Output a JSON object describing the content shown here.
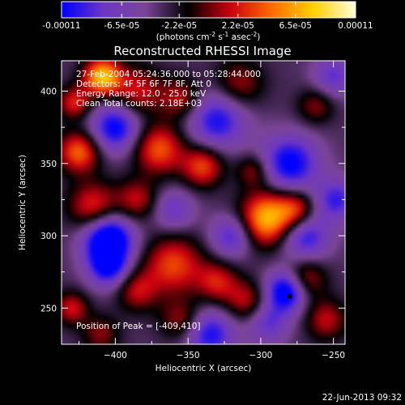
{
  "colorbar": {
    "tick_labels": [
      "-0.00011",
      "-6.5e-05",
      "-2.2e-05",
      "2.2e-05",
      "6.5e-05",
      "0.00011"
    ],
    "tick_values": [
      -0.00011,
      -6.5e-05,
      -2.2e-05,
      2.2e-05,
      6.5e-05,
      0.00011
    ],
    "range": [
      -0.00011,
      0.00011
    ],
    "units_prefix": "(photons cm",
    "units_exp1": "-2",
    "units_mid": " s",
    "units_exp2": "-1",
    "units_mid2": " asec",
    "units_exp3": "-2",
    "units_suffix": ")"
  },
  "annotations": {
    "time_range": "27-Feb-2004 05:24:36.000 to 05:28:44.000",
    "detectors": "Detectors: 4F 5F 6F 7F 8F, Att 0",
    "energy_range": "Energy Range: 12.0 - 25.0 keV",
    "clean_counts": "Clean     Total counts: 2.18E+03",
    "peak_position": "Position of Peak = [-409,410]"
  },
  "footer": {
    "timestamp": "22-Jun-2013 09:32"
  },
  "colors": {
    "colormap": [
      "#0000ff",
      "#6f37c4",
      "#7a4596",
      "#000000",
      "#c8000f",
      "#ff6a00",
      "#ffd000",
      "#ffffd8"
    ],
    "background": "#000000",
    "foreground": "#ffffff"
  },
  "chart_data": {
    "type": "heatmap",
    "title": "Reconstructed RHESSI Image",
    "xlabel": "Heliocentric X (arcsec)",
    "ylabel": "Heliocentric Y (arcsec)",
    "xlim": [
      -437,
      -242
    ],
    "ylim": [
      225,
      421
    ],
    "x_ticks": [
      -400,
      -350,
      -300,
      -250
    ],
    "y_ticks": [
      250,
      300,
      350,
      400
    ],
    "x_tick_labels": [
      "−400",
      "−350",
      "−300",
      "−250"
    ],
    "y_tick_labels": [
      "250",
      "300",
      "350",
      "400"
    ],
    "grid": false,
    "peak": [
      -409,
      410
    ],
    "sources": [
      {
        "x": -409,
        "y": 410,
        "amp": 0.00011,
        "s": 9
      },
      {
        "x": -428,
        "y": 392,
        "amp": 6e-05,
        "s": 8
      },
      {
        "x": -385,
        "y": 400,
        "amp": 5.5e-05,
        "s": 12
      },
      {
        "x": -355,
        "y": 395,
        "amp": 5e-05,
        "s": 10
      },
      {
        "x": -315,
        "y": 405,
        "amp": 4.5e-05,
        "s": 12
      },
      {
        "x": -262,
        "y": 390,
        "amp": 4e-05,
        "s": 9
      },
      {
        "x": -425,
        "y": 358,
        "amp": 8e-05,
        "s": 10
      },
      {
        "x": -415,
        "y": 320,
        "amp": 6.5e-05,
        "s": 12
      },
      {
        "x": -370,
        "y": 360,
        "amp": 7.5e-05,
        "s": 12
      },
      {
        "x": -340,
        "y": 348,
        "amp": 7e-05,
        "s": 10
      },
      {
        "x": -295,
        "y": 312,
        "amp": 0.00011,
        "s": 13
      },
      {
        "x": -275,
        "y": 318,
        "amp": 6e-05,
        "s": 9
      },
      {
        "x": -385,
        "y": 325,
        "amp": 5e-05,
        "s": 10
      },
      {
        "x": -360,
        "y": 280,
        "amp": 7e-05,
        "s": 14
      },
      {
        "x": -385,
        "y": 262,
        "amp": 5e-05,
        "s": 10
      },
      {
        "x": -330,
        "y": 268,
        "amp": 5.5e-05,
        "s": 10
      },
      {
        "x": -310,
        "y": 255,
        "amp": 5e-05,
        "s": 10
      },
      {
        "x": -355,
        "y": 242,
        "amp": 4.5e-05,
        "s": 10
      },
      {
        "x": -270,
        "y": 270,
        "amp": 6e-05,
        "s": 10
      },
      {
        "x": -255,
        "y": 242,
        "amp": 5e-05,
        "s": 10
      },
      {
        "x": -430,
        "y": 250,
        "amp": 5.5e-05,
        "s": 8
      },
      {
        "x": -410,
        "y": 232,
        "amp": 4e-05,
        "s": 9
      },
      {
        "x": -305,
        "y": 345,
        "amp": 4.5e-05,
        "s": 8
      },
      {
        "x": -400,
        "y": 375,
        "amp": -8e-05,
        "s": 12
      },
      {
        "x": -405,
        "y": 298,
        "amp": -0.00011,
        "s": 12
      },
      {
        "x": -330,
        "y": 380,
        "amp": -7e-05,
        "s": 14
      },
      {
        "x": -280,
        "y": 350,
        "amp": -8e-05,
        "s": 14
      },
      {
        "x": -270,
        "y": 300,
        "amp": -7e-05,
        "s": 12
      },
      {
        "x": -320,
        "y": 300,
        "amp": -6e-05,
        "s": 10
      },
      {
        "x": -282,
        "y": 262,
        "amp": -0.0001,
        "s": 10
      },
      {
        "x": -335,
        "y": 232,
        "amp": -7e-05,
        "s": 12
      },
      {
        "x": -405,
        "y": 278,
        "amp": -7e-05,
        "s": 10
      },
      {
        "x": -248,
        "y": 325,
        "amp": -6e-05,
        "s": 10
      },
      {
        "x": -360,
        "y": 318,
        "amp": -4.5e-05,
        "s": 10
      },
      {
        "x": -250,
        "y": 410,
        "amp": -5e-05,
        "s": 10
      },
      {
        "x": -295,
        "y": 240,
        "amp": -5e-05,
        "s": 10
      }
    ]
  }
}
